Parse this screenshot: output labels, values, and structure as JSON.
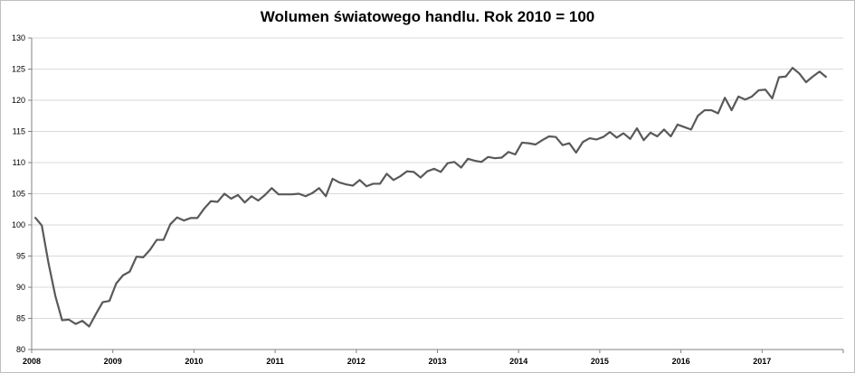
{
  "chart_data": {
    "type": "line",
    "title": "Wolumen światowego handlu. Rok 2010 = 100",
    "xlabel": "",
    "ylabel": "",
    "ylim": [
      80,
      130
    ],
    "y_ticks": [
      80,
      85,
      90,
      95,
      100,
      105,
      110,
      115,
      120,
      125,
      130
    ],
    "x_ticks": [
      "2008",
      "2009",
      "2010",
      "2011",
      "2012",
      "2013",
      "2014",
      "2015",
      "2016",
      "2017"
    ],
    "x_start_year": 2008,
    "x_periods_per_year": 12,
    "grid": {
      "horizontal": true,
      "vertical": false
    },
    "legend": "none",
    "series": [
      {
        "color": "#595959",
        "values": [
          101.2,
          99.9,
          93.8,
          88.6,
          84.7,
          84.8,
          84.1,
          84.6,
          83.7,
          85.7,
          87.6,
          87.8,
          90.6,
          91.9,
          92.5,
          94.9,
          94.8,
          96.0,
          97.6,
          97.6,
          100.1,
          101.2,
          100.7,
          101.1,
          101.1,
          102.6,
          103.8,
          103.7,
          105.0,
          104.2,
          104.8,
          103.6,
          104.6,
          103.9,
          104.8,
          105.9,
          104.9,
          104.9,
          104.9,
          105.0,
          104.6,
          105.1,
          105.9,
          104.6,
          107.4,
          106.8,
          106.5,
          106.3,
          107.2,
          106.2,
          106.6,
          106.6,
          108.2,
          107.2,
          107.8,
          108.6,
          108.5,
          107.6,
          108.6,
          109.0,
          108.5,
          109.9,
          110.1,
          109.2,
          110.6,
          110.3,
          110.1,
          110.9,
          110.7,
          110.8,
          111.7,
          111.3,
          113.2,
          113.1,
          112.9,
          113.6,
          114.2,
          114.1,
          112.8,
          113.1,
          111.6,
          113.3,
          113.9,
          113.7,
          114.1,
          114.9,
          114.0,
          114.7,
          113.8,
          115.5,
          113.6,
          114.8,
          114.2,
          115.3,
          114.2,
          116.1,
          115.7,
          115.3,
          117.5,
          118.4,
          118.4,
          117.9,
          120.4,
          118.4,
          120.6,
          120.1,
          120.6,
          121.6,
          121.7,
          120.3,
          123.7,
          123.8,
          125.2,
          124.3,
          122.9,
          123.8,
          124.6,
          123.7
        ]
      }
    ]
  }
}
